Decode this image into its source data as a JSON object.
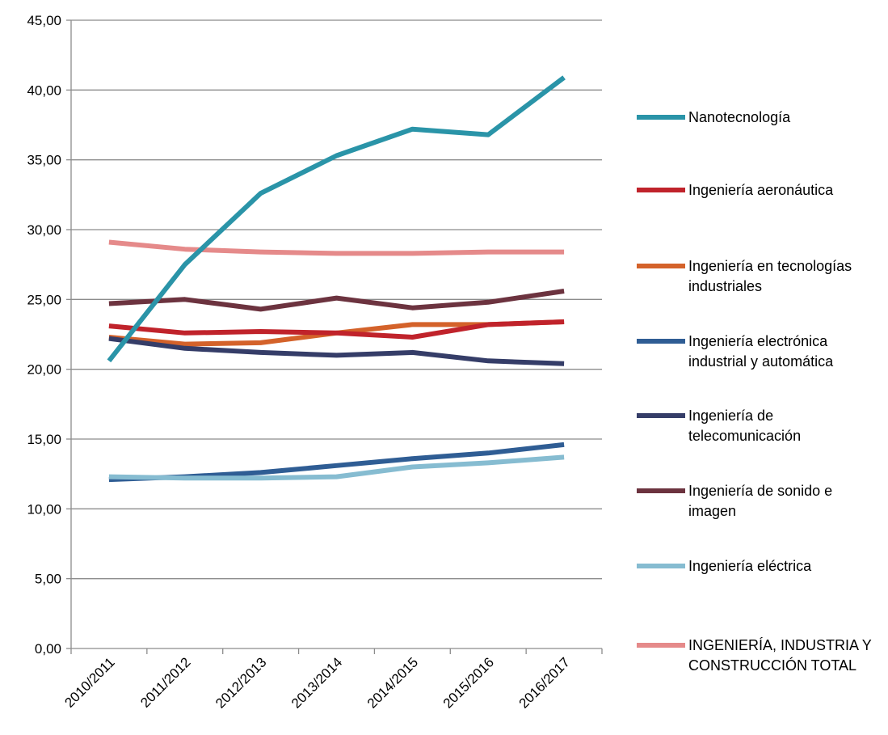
{
  "chart_data": {
    "type": "line",
    "title": "",
    "xlabel": "",
    "ylabel": "",
    "ylim": [
      0,
      45
    ],
    "grid": true,
    "legend_position": "right",
    "categories": [
      "2010/2011",
      "2011/2012",
      "2012/2013",
      "2013/2014",
      "2014/2015",
      "2015/2016",
      "2016/2017"
    ],
    "yticks": [
      "0,00",
      "5,00",
      "10,00",
      "15,00",
      "20,00",
      "25,00",
      "30,00",
      "35,00",
      "40,00",
      "45,00"
    ],
    "series": [
      {
        "name": "Nanotecnología",
        "color": "#2a94a8",
        "values": [
          20.6,
          27.5,
          32.6,
          35.3,
          37.2,
          36.8,
          40.9
        ]
      },
      {
        "name": "Ingeniería aeronáutica",
        "color": "#c0232b",
        "values": [
          23.1,
          22.6,
          22.7,
          22.6,
          22.3,
          23.2,
          23.4
        ]
      },
      {
        "name": "Ingeniería en tecnologías industriales",
        "color": "#d4622a",
        "values": [
          22.3,
          21.8,
          21.9,
          22.6,
          23.2,
          23.2,
          23.4
        ]
      },
      {
        "name": "Ingeniería electrónica industrial y automática",
        "color": "#2f5d94",
        "values": [
          12.1,
          12.3,
          12.6,
          13.1,
          13.6,
          14.0,
          14.6
        ]
      },
      {
        "name": "Ingeniería de telecomunicación",
        "color": "#353d68",
        "values": [
          22.2,
          21.5,
          21.2,
          21.0,
          21.2,
          20.6,
          20.4
        ]
      },
      {
        "name": "Ingeniería de sonido e imagen",
        "color": "#6c333f",
        "values": [
          24.7,
          25.0,
          24.3,
          25.1,
          24.4,
          24.8,
          25.6
        ]
      },
      {
        "name": " Ingeniería eléctrica",
        "color": "#86bcd1",
        "values": [
          12.3,
          12.2,
          12.2,
          12.3,
          13.0,
          13.3,
          13.7
        ]
      },
      {
        "name": "INGENIERÍA, INDUSTRIA Y CONSTRUCCIÓN TOTAL",
        "color": "#e58a8a",
        "values": [
          29.1,
          28.6,
          28.4,
          28.3,
          28.3,
          28.4,
          28.4
        ]
      }
    ]
  }
}
